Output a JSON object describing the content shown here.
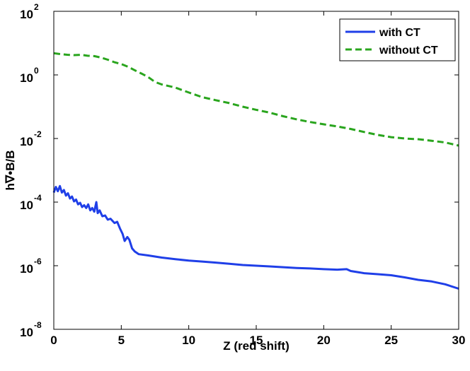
{
  "chart_data": {
    "type": "line",
    "title": "",
    "xlabel": "Z (red shift)",
    "ylabel": "h∇•B/B",
    "xlim": [
      0,
      30
    ],
    "ylim": [
      1e-08,
      100
    ],
    "yscale": "log",
    "grid": false,
    "legend_position": "top-right",
    "x_ticks": [
      "0",
      "5",
      "10",
      "15",
      "20",
      "25",
      "30"
    ],
    "y_ticks": [
      {
        "base": "10",
        "exp": "-8"
      },
      {
        "base": "10",
        "exp": "-6"
      },
      {
        "base": "10",
        "exp": "-4"
      },
      {
        "base": "10",
        "exp": "-2"
      },
      {
        "base": "10",
        "exp": "0"
      },
      {
        "base": "10",
        "exp": "2"
      }
    ],
    "series": [
      {
        "name": "with CT",
        "color": "#1f3fe8",
        "style": "solid",
        "points": [
          [
            0.0,
            0.0002
          ],
          [
            0.15,
            0.0003
          ],
          [
            0.3,
            0.00022
          ],
          [
            0.45,
            0.00032
          ],
          [
            0.6,
            0.0002
          ],
          [
            0.75,
            0.00024
          ],
          [
            0.9,
            0.00016
          ],
          [
            1.05,
            0.00019
          ],
          [
            1.2,
            0.00013
          ],
          [
            1.35,
            0.00015
          ],
          [
            1.5,
            0.000105
          ],
          [
            1.65,
            0.00012
          ],
          [
            1.8,
            8.5e-05
          ],
          [
            1.95,
            9.5e-05
          ],
          [
            2.1,
            7e-05
          ],
          [
            2.25,
            8e-05
          ],
          [
            2.4,
            6.5e-05
          ],
          [
            2.55,
            8.5e-05
          ],
          [
            2.7,
            5.5e-05
          ],
          [
            2.85,
            6.5e-05
          ],
          [
            3.0,
            5e-05
          ],
          [
            3.15,
            0.0001
          ],
          [
            3.25,
            4.5e-05
          ],
          [
            3.4,
            5.5e-05
          ],
          [
            3.6,
            3.6e-05
          ],
          [
            3.8,
            3.8e-05
          ],
          [
            4.0,
            2.8e-05
          ],
          [
            4.2,
            3e-05
          ],
          [
            4.5,
            2.2e-05
          ],
          [
            4.7,
            2.4e-05
          ],
          [
            4.9,
            1.5e-05
          ],
          [
            5.1,
            1e-05
          ],
          [
            5.25,
            6e-06
          ],
          [
            5.45,
            8e-06
          ],
          [
            5.6,
            6.5e-06
          ],
          [
            5.8,
            3.5e-06
          ],
          [
            6.0,
            2.8e-06
          ],
          [
            6.3,
            2.3e-06
          ],
          [
            7.0,
            2.1e-06
          ],
          [
            8.0,
            1.8e-06
          ],
          [
            9.0,
            1.6e-06
          ],
          [
            10.0,
            1.45e-06
          ],
          [
            11.0,
            1.35e-06
          ],
          [
            12.0,
            1.25e-06
          ],
          [
            13.0,
            1.15e-06
          ],
          [
            14.0,
            1.05e-06
          ],
          [
            15.0,
            1e-06
          ],
          [
            16.0,
            9.5e-07
          ],
          [
            17.0,
            9e-07
          ],
          [
            18.0,
            8.5e-07
          ],
          [
            19.0,
            8.2e-07
          ],
          [
            20.0,
            7.8e-07
          ],
          [
            21.0,
            7.5e-07
          ],
          [
            21.7,
            7.8e-07
          ],
          [
            22.0,
            6.8e-07
          ],
          [
            23.0,
            5.8e-07
          ],
          [
            24.0,
            5.4e-07
          ],
          [
            25.0,
            5e-07
          ],
          [
            26.0,
            4.3e-07
          ],
          [
            27.0,
            3.6e-07
          ],
          [
            28.0,
            3.2e-07
          ],
          [
            29.0,
            2.6e-07
          ],
          [
            30.0,
            1.9e-07
          ]
        ]
      },
      {
        "name": "without CT",
        "color": "#2aa51e",
        "style": "dashed",
        "points": [
          [
            0.0,
            4.8
          ],
          [
            0.5,
            4.5
          ],
          [
            1.0,
            4.3
          ],
          [
            1.5,
            4.2
          ],
          [
            2.0,
            4.3
          ],
          [
            2.5,
            4.0
          ],
          [
            3.0,
            3.9
          ],
          [
            3.5,
            3.5
          ],
          [
            4.0,
            3.0
          ],
          [
            4.5,
            2.5
          ],
          [
            5.0,
            2.2
          ],
          [
            5.5,
            1.8
          ],
          [
            6.0,
            1.4
          ],
          [
            6.5,
            1.1
          ],
          [
            7.0,
            0.85
          ],
          [
            7.5,
            0.6
          ],
          [
            8.0,
            0.5
          ],
          [
            9.0,
            0.4
          ],
          [
            10.0,
            0.28
          ],
          [
            11.0,
            0.2
          ],
          [
            12.0,
            0.16
          ],
          [
            13.0,
            0.13
          ],
          [
            14.0,
            0.1
          ],
          [
            15.0,
            0.08
          ],
          [
            16.0,
            0.065
          ],
          [
            17.0,
            0.05
          ],
          [
            18.0,
            0.04
          ],
          [
            19.0,
            0.033
          ],
          [
            20.0,
            0.028
          ],
          [
            21.0,
            0.024
          ],
          [
            22.0,
            0.02
          ],
          [
            23.0,
            0.016
          ],
          [
            24.0,
            0.013
          ],
          [
            25.0,
            0.011
          ],
          [
            26.0,
            0.01
          ],
          [
            27.0,
            0.0095
          ],
          [
            28.0,
            0.0085
          ],
          [
            29.0,
            0.0075
          ],
          [
            30.0,
            0.006
          ]
        ]
      }
    ]
  }
}
